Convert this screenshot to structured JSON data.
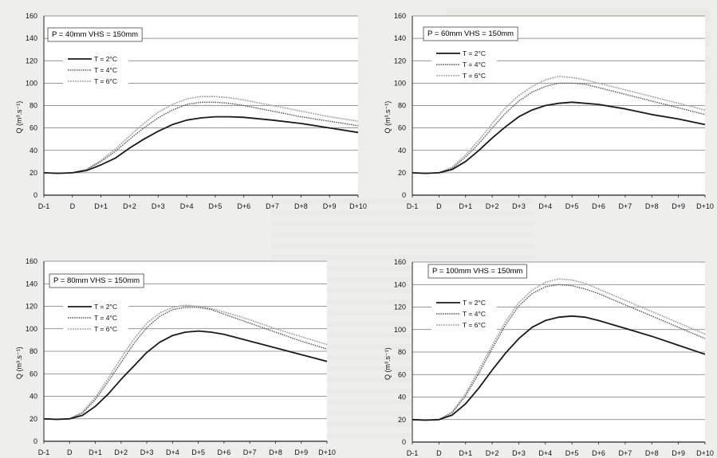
{
  "chart_data": [
    {
      "type": "line",
      "annotation": "P = 40mm  VHS = 150mm",
      "ylabel": "Q (m³.s⁻¹)",
      "ylim": [
        0,
        160
      ],
      "yticks": [
        0,
        20,
        40,
        60,
        80,
        100,
        120,
        140,
        160
      ],
      "categories": [
        "D-1",
        "D",
        "D+1",
        "D+2",
        "D+3",
        "D+4",
        "D+5",
        "D+6",
        "D+7",
        "D+8",
        "D+9",
        "D+10"
      ],
      "x": [
        -1,
        0,
        1,
        2,
        3,
        4,
        5,
        6,
        7,
        8,
        9,
        10
      ],
      "grid": true,
      "legend_position": "top-left",
      "series": [
        {
          "name": "T = 2°C",
          "style": "solid",
          "color": "#1a1a1a",
          "x": [
            -1,
            -0.5,
            0,
            0.5,
            1,
            1.5,
            2,
            2.5,
            3,
            3.5,
            4,
            4.5,
            5,
            5.5,
            6,
            7,
            8,
            9,
            10
          ],
          "values": [
            20,
            19.5,
            20,
            22,
            27,
            33,
            42,
            50,
            57,
            63,
            67,
            69,
            70,
            70,
            69.5,
            67,
            64,
            60,
            56
          ]
        },
        {
          "name": "T = 4°C",
          "style": "dotted",
          "color": "#555555",
          "x": [
            -1,
            -0.5,
            0,
            0.5,
            1,
            1.5,
            2,
            2.5,
            3,
            3.5,
            4,
            4.5,
            5,
            5.5,
            6,
            7,
            8,
            9,
            10
          ],
          "values": [
            20,
            19.5,
            20,
            23,
            30,
            39,
            50,
            60,
            69,
            76,
            81,
            83,
            83,
            82,
            80,
            75,
            70,
            66,
            62
          ]
        },
        {
          "name": "T = 6°C",
          "style": "light",
          "color": "#a8a8a8",
          "x": [
            -1,
            -0.5,
            0,
            0.5,
            1,
            1.5,
            2,
            2.5,
            3,
            3.5,
            4,
            4.5,
            5,
            5.5,
            6,
            7,
            8,
            9,
            10
          ],
          "values": [
            20,
            19.5,
            20,
            23,
            31,
            41,
            53,
            64,
            74,
            81,
            86,
            88,
            88,
            87,
            85,
            80,
            75,
            70,
            66
          ]
        }
      ]
    },
    {
      "type": "line",
      "annotation": "P = 60mm  VHS = 150mm",
      "ylabel": "Q (m³.s⁻¹)",
      "ylim": [
        0,
        160
      ],
      "yticks": [
        0,
        20,
        40,
        60,
        80,
        100,
        120,
        140,
        160
      ],
      "categories": [
        "D-1",
        "D",
        "D+1",
        "D+2",
        "D+3",
        "D+4",
        "D+5",
        "D+6",
        "D+7",
        "D+8",
        "D+9",
        "D+10"
      ],
      "x": [
        -1,
        0,
        1,
        2,
        3,
        4,
        5,
        6,
        7,
        8,
        9,
        10
      ],
      "grid": true,
      "legend_position": "top-left",
      "series": [
        {
          "name": "T = 2°C",
          "style": "solid",
          "color": "#1a1a1a",
          "x": [
            -1,
            -0.5,
            0,
            0.5,
            1,
            1.5,
            2,
            2.5,
            3,
            3.5,
            4,
            4.5,
            5,
            5.5,
            6,
            7,
            8,
            9,
            10
          ],
          "values": [
            20,
            19.5,
            20,
            23,
            30,
            40,
            51,
            61,
            70,
            76,
            80,
            82,
            83,
            82,
            81,
            77,
            72,
            68,
            63
          ]
        },
        {
          "name": "T = 4°C",
          "style": "dotted",
          "color": "#555555",
          "x": [
            -1,
            -0.5,
            0,
            0.5,
            1,
            1.5,
            2,
            2.5,
            3,
            3.5,
            4,
            4.5,
            5,
            5.5,
            6,
            7,
            8,
            9,
            10
          ],
          "values": [
            20,
            19.5,
            20,
            24,
            34,
            46,
            60,
            73,
            84,
            92,
            97,
            100,
            100,
            99,
            96,
            90,
            84,
            78,
            72
          ]
        },
        {
          "name": "T = 6°C",
          "style": "light",
          "color": "#a8a8a8",
          "x": [
            -1,
            -0.5,
            0,
            0.5,
            1,
            1.5,
            2,
            2.5,
            3,
            3.5,
            4,
            4.5,
            5,
            5.5,
            6,
            7,
            8,
            9,
            10
          ],
          "values": [
            20,
            19.5,
            20,
            25,
            36,
            49,
            64,
            78,
            89,
            97,
            103,
            106,
            105,
            103,
            100,
            94,
            88,
            82,
            76
          ]
        }
      ]
    },
    {
      "type": "line",
      "annotation": "P = 80mm  VHS = 150mm",
      "ylabel": "Q (m³.s⁻¹)",
      "ylim": [
        0,
        160
      ],
      "yticks": [
        0,
        20,
        40,
        60,
        80,
        100,
        120,
        140,
        160
      ],
      "categories": [
        "D-1",
        "D",
        "D+1",
        "D+2",
        "D+3",
        "D+4",
        "D+5",
        "D+6",
        "D+7",
        "D+8",
        "D+9",
        "D+10"
      ],
      "x": [
        -1,
        0,
        1,
        2,
        3,
        4,
        5,
        6,
        7,
        8,
        9,
        10
      ],
      "grid": true,
      "legend_position": "top-left",
      "series": [
        {
          "name": "T = 2°C",
          "style": "solid",
          "color": "#1a1a1a",
          "x": [
            -1,
            -0.5,
            0,
            0.5,
            1,
            1.5,
            2,
            2.5,
            3,
            3.5,
            4,
            4.5,
            5,
            5.5,
            6,
            7,
            8,
            9,
            10
          ],
          "values": [
            20,
            19.5,
            20,
            23,
            31,
            42,
            55,
            67,
            79,
            88,
            94,
            97,
            98,
            97,
            95,
            89,
            83,
            77,
            71
          ]
        },
        {
          "name": "T = 4°C",
          "style": "dotted",
          "color": "#555555",
          "x": [
            -1,
            -0.5,
            0,
            0.5,
            1,
            1.5,
            2,
            2.5,
            3,
            3.5,
            4,
            4.5,
            5,
            5.5,
            6,
            7,
            8,
            9,
            10
          ],
          "values": [
            20,
            19.5,
            20,
            25,
            37,
            53,
            70,
            87,
            101,
            111,
            117,
            119,
            119,
            117,
            113,
            105,
            97,
            89,
            82
          ]
        },
        {
          "name": "T = 6°C",
          "style": "light",
          "color": "#a8a8a8",
          "x": [
            -1,
            -0.5,
            0,
            0.5,
            1,
            1.5,
            2,
            2.5,
            3,
            3.5,
            4,
            4.5,
            5,
            5.5,
            6,
            7,
            8,
            9,
            10
          ],
          "values": [
            20,
            19.5,
            20,
            26,
            39,
            56,
            74,
            91,
            105,
            114,
            119,
            121,
            120,
            118,
            115,
            108,
            100,
            93,
            86
          ]
        }
      ]
    },
    {
      "type": "line",
      "annotation": "P = 100mm  VHS = 150mm",
      "ylabel": "Q (m³.s⁻¹)",
      "ylim": [
        0,
        160
      ],
      "yticks": [
        0,
        20,
        40,
        60,
        80,
        100,
        120,
        140,
        160
      ],
      "categories": [
        "D-1",
        "D",
        "D+1",
        "D+2",
        "D+3",
        "D+4",
        "D+5",
        "D+6",
        "D+7",
        "D+8",
        "D+9",
        "D+10"
      ],
      "x": [
        -1,
        0,
        1,
        2,
        3,
        4,
        5,
        6,
        7,
        8,
        9,
        10
      ],
      "grid": true,
      "legend_position": "top-left",
      "series": [
        {
          "name": "T = 2°C",
          "style": "solid",
          "color": "#1a1a1a",
          "x": [
            -1,
            -0.5,
            0,
            0.5,
            1,
            1.5,
            2,
            2.5,
            3,
            3.5,
            4,
            4.5,
            5,
            5.5,
            6,
            7,
            8,
            9,
            10
          ],
          "values": [
            20,
            19.5,
            20,
            24,
            34,
            48,
            64,
            79,
            92,
            102,
            108,
            111,
            112,
            111,
            108,
            101,
            94,
            86,
            78
          ]
        },
        {
          "name": "T = 4°C",
          "style": "dotted",
          "color": "#555555",
          "x": [
            -1,
            -0.5,
            0,
            0.5,
            1,
            1.5,
            2,
            2.5,
            3,
            3.5,
            4,
            4.5,
            5,
            5.5,
            6,
            7,
            8,
            9,
            10
          ],
          "values": [
            20,
            19.5,
            20,
            26,
            41,
            61,
            83,
            104,
            121,
            132,
            138,
            140,
            139,
            136,
            132,
            122,
            112,
            102,
            92
          ]
        },
        {
          "name": "T = 6°C",
          "style": "light",
          "color": "#a8a8a8",
          "x": [
            -1,
            -0.5,
            0,
            0.5,
            1,
            1.5,
            2,
            2.5,
            3,
            3.5,
            4,
            4.5,
            5,
            5.5,
            6,
            7,
            8,
            9,
            10
          ],
          "values": [
            20,
            19.5,
            20,
            27,
            43,
            64,
            86,
            107,
            124,
            135,
            142,
            145,
            144,
            141,
            136,
            126,
            116,
            106,
            96
          ]
        }
      ]
    }
  ]
}
